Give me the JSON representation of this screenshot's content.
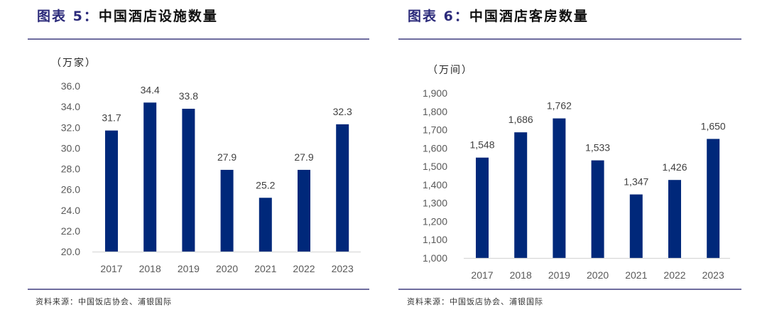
{
  "bar_color": "#00287a",
  "axis_text_color": "#595959",
  "chart_data": [
    {
      "type": "bar",
      "fig_label": "图表 5：",
      "title": "中国酒店设施数量",
      "unit_label": "（万家）",
      "categories": [
        "2017",
        "2018",
        "2019",
        "2020",
        "2021",
        "2022",
        "2023"
      ],
      "values": [
        31.7,
        34.4,
        33.8,
        27.9,
        25.2,
        27.9,
        32.3
      ],
      "value_labels": [
        "31.7",
        "34.4",
        "33.8",
        "27.9",
        "25.2",
        "27.9",
        "32.3"
      ],
      "yticks": [
        "20.0",
        "22.0",
        "24.0",
        "26.0",
        "28.0",
        "30.0",
        "32.0",
        "34.0",
        "36.0"
      ],
      "ytick_values": [
        20,
        22,
        24,
        26,
        28,
        30,
        32,
        34,
        36
      ],
      "ylim": [
        20,
        36
      ],
      "xlabel": "",
      "ylabel": "万家",
      "grid": false,
      "source": "资料来源：中国饭店协会、浦银国际"
    },
    {
      "type": "bar",
      "fig_label": "图表 6：",
      "title": "中国酒店客房数量",
      "unit_label": "（万间）",
      "categories": [
        "2017",
        "2018",
        "2019",
        "2020",
        "2021",
        "2022",
        "2023"
      ],
      "values": [
        1548,
        1686,
        1762,
        1533,
        1347,
        1426,
        1650
      ],
      "value_labels": [
        "1,548",
        "1,686",
        "1,762",
        "1,533",
        "1,347",
        "1,426",
        "1,650"
      ],
      "yticks": [
        "1,000",
        "1,100",
        "1,200",
        "1,300",
        "1,400",
        "1,500",
        "1,600",
        "1,700",
        "1,800",
        "1,900"
      ],
      "ytick_values": [
        1000,
        1100,
        1200,
        1300,
        1400,
        1500,
        1600,
        1700,
        1800,
        1900
      ],
      "ylim": [
        1000,
        1900
      ],
      "xlabel": "",
      "ylabel": "万间",
      "grid": false,
      "source": "资料来源：中国饭店协会、浦银国际"
    }
  ]
}
